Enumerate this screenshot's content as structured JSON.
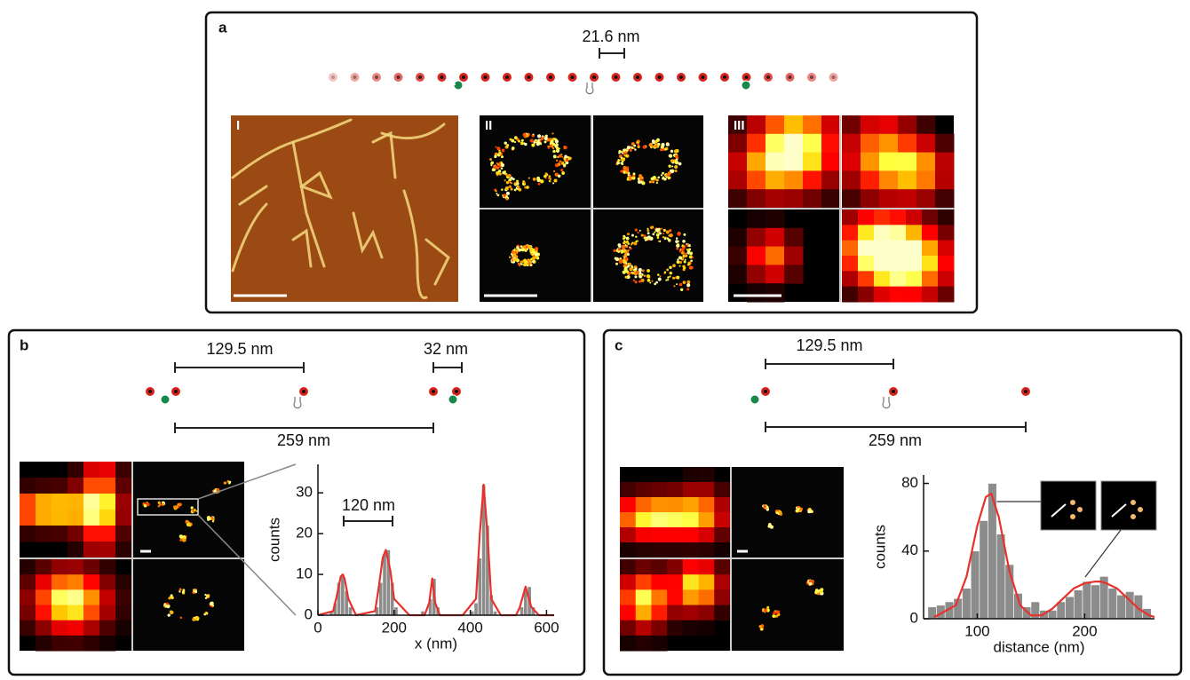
{
  "figure": {
    "panels": {
      "a": {
        "label": "a",
        "spacing": "21.6 nm",
        "images": [
          "I",
          "II",
          "III"
        ]
      },
      "b": {
        "label": "b",
        "spacings": [
          "129.5 nm",
          "32 nm",
          "259 nm"
        ],
        "annotation": "120 nm"
      },
      "c": {
        "label": "c",
        "spacings": [
          "129.5 nm",
          "259 nm"
        ]
      }
    }
  },
  "chart_data": [
    {
      "type": "histogram",
      "xlabel": "x (nm)",
      "ylabel": "counts",
      "bins": [
        0,
        10,
        20,
        30,
        40,
        50,
        60,
        70,
        80,
        90,
        100,
        110,
        120,
        130,
        140,
        150,
        160,
        170,
        180,
        190,
        200,
        210,
        220,
        230,
        240,
        250,
        260,
        270,
        280,
        290,
        300,
        310,
        320,
        330,
        340,
        350,
        360,
        370,
        380,
        390,
        400,
        410,
        420,
        430,
        440,
        450,
        460,
        470,
        480,
        490,
        500,
        510,
        520,
        530,
        540,
        550,
        560,
        570,
        580,
        590,
        600,
        610,
        620
      ],
      "values": [
        0,
        0,
        0,
        1,
        3,
        8,
        10,
        6,
        2,
        0,
        0,
        0,
        0,
        0,
        0,
        2,
        8,
        15,
        16,
        8,
        2,
        0,
        0,
        0,
        0,
        0,
        0,
        1,
        0,
        4,
        9,
        2,
        0,
        0,
        0,
        0,
        0,
        0,
        0,
        0,
        1,
        3,
        14,
        32,
        22,
        5,
        1,
        0,
        0,
        0,
        0,
        0,
        0,
        2,
        6,
        7,
        2,
        0,
        0,
        0,
        0,
        0
      ],
      "color": "#8c8c8c",
      "fit": {
        "x": [
          0,
          40,
          50,
          60,
          65,
          70,
          80,
          100,
          150,
          160,
          170,
          178,
          190,
          200,
          240,
          280,
          292,
          300,
          308,
          320,
          380,
          415,
          425,
          435,
          445,
          455,
          480,
          520,
          530,
          545,
          560,
          580,
          620
        ],
        "values": [
          0,
          1,
          5,
          9.5,
          10,
          9,
          4,
          0,
          1,
          7,
          14,
          16,
          11,
          4,
          0,
          0,
          3,
          9,
          3,
          0,
          0,
          4,
          20,
          32,
          20,
          4,
          0,
          0,
          2,
          7,
          2,
          0,
          0
        ],
        "color": "#e8312a"
      },
      "xlim": [
        0,
        620
      ],
      "ylim": [
        0,
        37
      ],
      "xticks": [
        0,
        200,
        400,
        600
      ],
      "yticks": [
        0,
        10,
        20,
        30
      ]
    },
    {
      "type": "histogram",
      "xlabel": "distance (nm)",
      "ylabel": "counts",
      "bins": [
        54,
        62,
        70,
        78,
        86,
        94,
        102,
        110,
        118,
        126,
        134,
        142,
        150,
        158,
        166,
        174,
        182,
        190,
        198,
        206,
        214,
        222,
        230,
        238,
        246,
        254,
        262
      ],
      "values": [
        7,
        8,
        10,
        12,
        18,
        40,
        58,
        80,
        50,
        32,
        15,
        7,
        10,
        5,
        5,
        10,
        13,
        17,
        22,
        20,
        25,
        18,
        14,
        16,
        14,
        6
      ],
      "color": "#8c8c8c",
      "fit": {
        "x": [
          60,
          80,
          90,
          100,
          108,
          113,
          120,
          130,
          140,
          150,
          160,
          170,
          180,
          190,
          200,
          210,
          215,
          220,
          230,
          240,
          250,
          260,
          265
        ],
        "values": [
          1,
          8,
          25,
          55,
          72,
          74,
          60,
          28,
          8,
          2,
          2,
          6,
          12,
          18,
          21,
          22,
          22,
          21,
          18,
          12,
          6,
          2,
          1
        ],
        "color": "#e8312a"
      },
      "xlim": [
        50,
        265
      ],
      "ylim": [
        0,
        85
      ],
      "xticks": [
        100,
        200
      ],
      "yticks": [
        0,
        40,
        80
      ]
    }
  ]
}
